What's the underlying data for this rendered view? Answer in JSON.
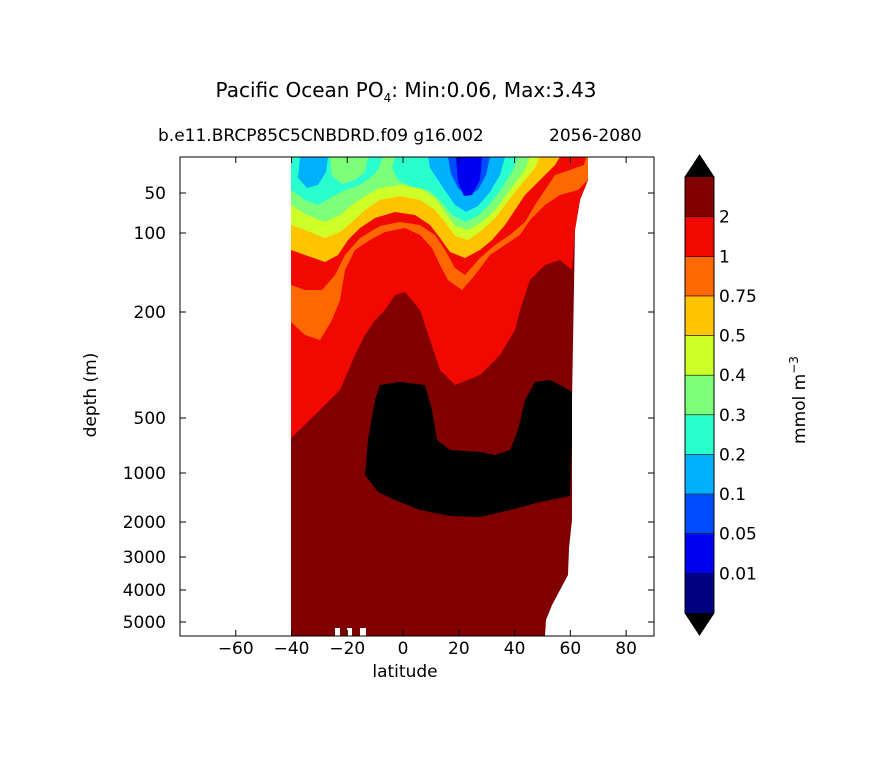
{
  "title_prefix": "Pacific Ocean PO",
  "title_sub": "4",
  "title_stats": ": Min:0.06, Max:3.43",
  "subtitle": "b.e11.BRCP85C5CNBDRD.f09 g16.002",
  "period": "2056-2080",
  "chart_data": {
    "type": "heatmap",
    "subtype": "filled-contour section",
    "xlabel": "latitude",
    "ylabel": "depth (m)",
    "xlim": [
      -80,
      90
    ],
    "ylim_depth": [
      5500,
      10
    ],
    "y_scale": "log-like (depth)",
    "xticks": [
      -60,
      -40,
      -20,
      0,
      20,
      40,
      60,
      80
    ],
    "yticks": [
      50,
      100,
      200,
      500,
      1000,
      2000,
      3000,
      4000,
      5000
    ],
    "min": 0.06,
    "max": 3.43,
    "colorbar": {
      "label": "mmol m",
      "label_exponent": "−3",
      "levels": [
        "0.01",
        "0.05",
        "0.1",
        "0.2",
        "0.3",
        "0.4",
        "0.5",
        "0.75",
        "1",
        "2"
      ],
      "colors": [
        "#000080",
        "#0000f1",
        "#004dff",
        "#00b1ff",
        "#29ffce",
        "#7dff7a",
        "#ceff29",
        "#ffc400",
        "#ff6800",
        "#f10800",
        "#800000"
      ],
      "extend_low_color": "#000000",
      "extend_high_color": "#000000"
    }
  }
}
